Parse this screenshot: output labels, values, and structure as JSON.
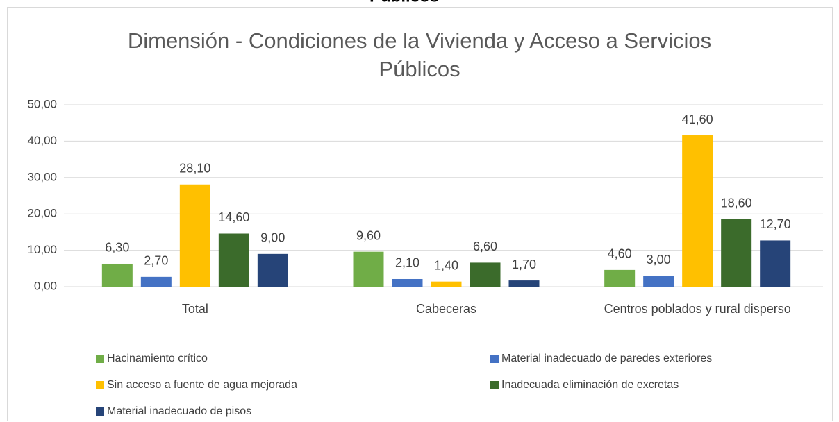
{
  "header": {
    "text": "Públicos"
  },
  "chart_data": {
    "type": "bar",
    "title": "Dimensión - Condiciones de la Vivienda y Acceso a Servicios Públicos",
    "categories": [
      "Total",
      "Cabeceras",
      "Centros poblados y rural disperso"
    ],
    "series": [
      {
        "name": "Hacinamiento crítico",
        "color": "#70ad47",
        "values": [
          6.3,
          9.6,
          4.6
        ],
        "value_labels": [
          "6,30",
          "9,60",
          "4,60"
        ]
      },
      {
        "name": "Material inadecuado de paredes exteriores",
        "color": "#4472c4",
        "values": [
          2.7,
          2.1,
          3.0
        ],
        "value_labels": [
          "2,70",
          "2,10",
          "3,00"
        ]
      },
      {
        "name": "Sin acceso a fuente de agua mejorada",
        "color": "#ffc000",
        "values": [
          28.1,
          1.4,
          41.6
        ],
        "value_labels": [
          "28,10",
          "1,40",
          "41,60"
        ]
      },
      {
        "name": "Inadecuada eliminación de excretas",
        "color": "#3b6b2b",
        "values": [
          14.6,
          6.6,
          18.6
        ],
        "value_labels": [
          "14,60",
          "6,60",
          "18,60"
        ]
      },
      {
        "name": "Material inadecuado de pisos",
        "color": "#264478",
        "values": [
          9.0,
          1.7,
          12.7
        ],
        "value_labels": [
          "9,00",
          "1,70",
          "12,70"
        ]
      }
    ],
    "ylim": [
      0,
      50
    ],
    "yticks": [
      {
        "value": 0,
        "label": "0,00"
      },
      {
        "value": 10,
        "label": "10,00"
      },
      {
        "value": 20,
        "label": "20,00"
      },
      {
        "value": 30,
        "label": "30,00"
      },
      {
        "value": 40,
        "label": "40,00"
      },
      {
        "value": 50,
        "label": "50,00"
      }
    ],
    "grid": true,
    "legend": "bottom"
  }
}
